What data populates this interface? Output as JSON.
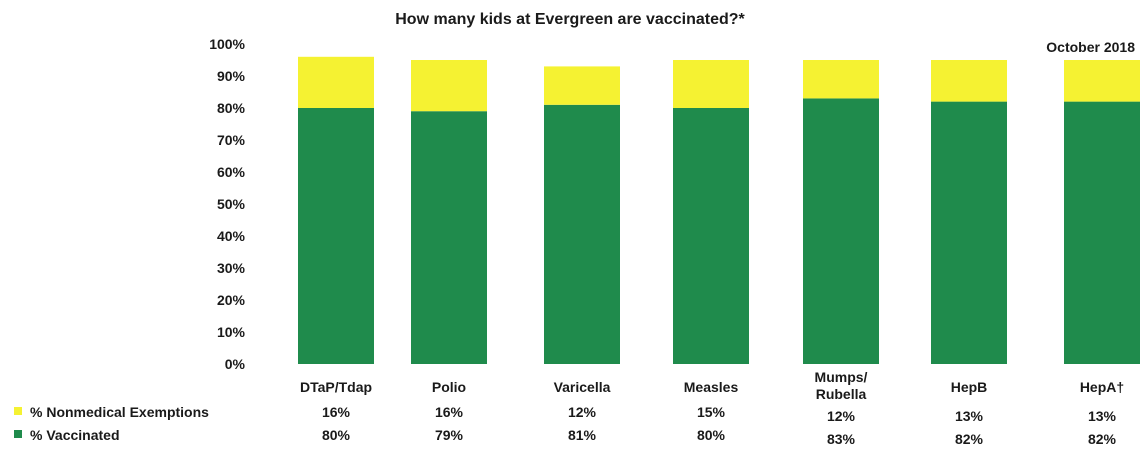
{
  "chart_data": {
    "type": "bar",
    "stacked": true,
    "title": "How many kids at Evergreen are vaccinated?*",
    "date_label": "October 2018",
    "categories": [
      "DTaP/Tdap",
      "Polio",
      "Varicella",
      "Measles",
      "Mumps/\nRubella",
      "HepB",
      "HepA†"
    ],
    "ylim": [
      0,
      100
    ],
    "yticks": [
      "0%",
      "10%",
      "20%",
      "30%",
      "40%",
      "50%",
      "60%",
      "70%",
      "80%",
      "90%",
      "100%"
    ],
    "grid": false,
    "series": [
      {
        "name": "% Vaccinated",
        "color": "#1f8b4c",
        "values": [
          80,
          79,
          81,
          80,
          83,
          82,
          82
        ],
        "labels": [
          "80%",
          "79%",
          "81%",
          "80%",
          "83%",
          "82%",
          "82%"
        ]
      },
      {
        "name": "% Nonmedical Exemptions",
        "color": "#f5f232",
        "values": [
          16,
          16,
          12,
          15,
          12,
          13,
          13
        ],
        "labels": [
          "16%",
          "16%",
          "12%",
          "15%",
          "12%",
          "13%",
          "13%"
        ]
      }
    ],
    "legend_position": "bottom-left"
  }
}
